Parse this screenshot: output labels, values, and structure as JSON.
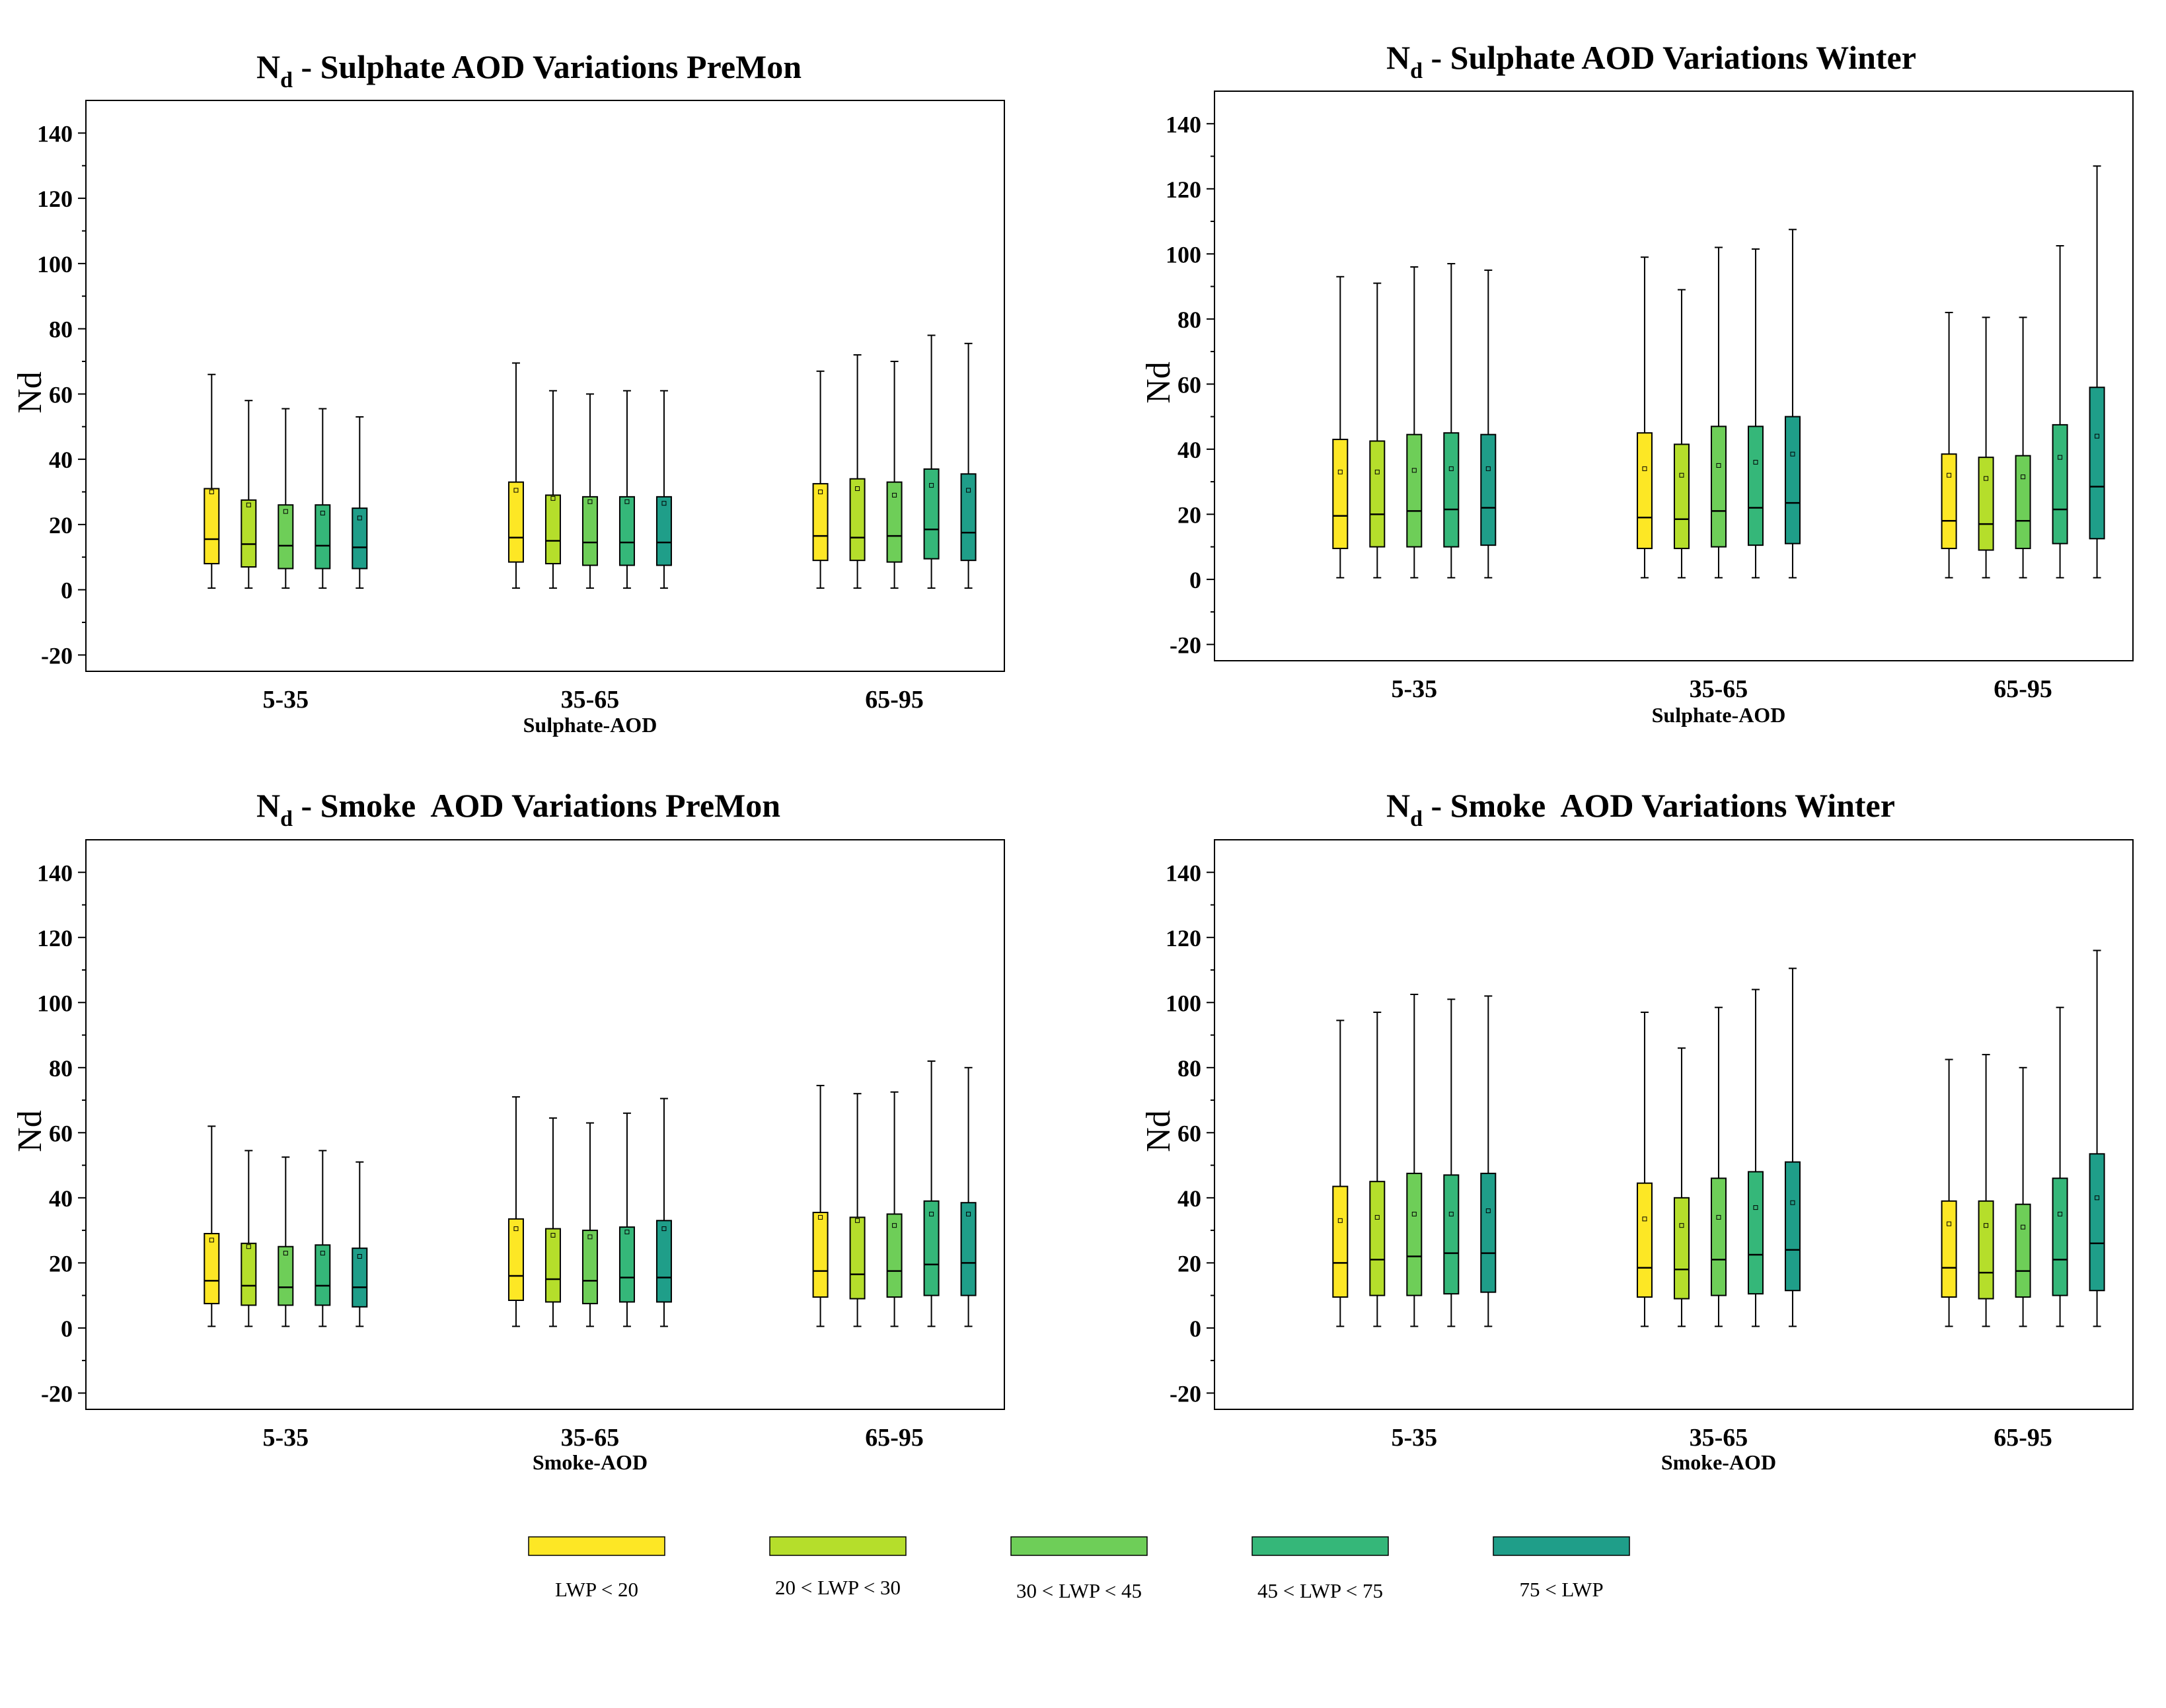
{
  "colors": {
    "lwp_lt_20": "#fde725",
    "lwp_20_30": "#b5de2b",
    "lwp_30_45": "#6ece58",
    "lwp_45_75": "#35b779",
    "lwp_75_plus": "#1f9e89"
  },
  "legend": [
    {
      "label": "LWP < 20",
      "color_key": "lwp_lt_20"
    },
    {
      "label": "20 < LWP < 30",
      "color_key": "lwp_20_30"
    },
    {
      "label": "30 < LWP < 45",
      "color_key": "lwp_30_45"
    },
    {
      "label": "45 < LWP < 75",
      "color_key": "lwp_45_75"
    },
    {
      "label": "75 < LWP",
      "color_key": "lwp_75_plus"
    }
  ],
  "chart_data": [
    {
      "type": "box",
      "title_main": "N",
      "title_sub": "d",
      "title_rest": " - Sulphate AOD Variations PreMon",
      "xlabel": "Sulphate-AOD",
      "ylabel": "Nd",
      "ylim": [
        -25,
        150
      ],
      "yticks": [
        -20,
        0,
        20,
        40,
        60,
        80,
        100,
        120,
        140
      ],
      "categories": [
        "5-35",
        "35-65",
        "65-95"
      ],
      "series": [
        {
          "name": "LWP < 20",
          "boxes": [
            [
              0.5,
              8,
              15.5,
              31,
              66,
              30
            ],
            [
              0.5,
              8.5,
              16,
              33,
              69.5,
              30.5
            ],
            [
              0.5,
              9,
              16.5,
              32.5,
              67,
              30
            ]
          ]
        },
        {
          "name": "20 < LWP < 30",
          "boxes": [
            [
              0.5,
              7,
              14,
              27.5,
              58,
              26
            ],
            [
              0.5,
              8,
              15,
              29,
              61,
              28
            ],
            [
              0.5,
              9,
              16,
              34,
              72,
              31
            ]
          ]
        },
        {
          "name": "30 < LWP < 45",
          "boxes": [
            [
              0.5,
              6.5,
              13.5,
              26,
              55.5,
              24
            ],
            [
              0.5,
              7.5,
              14.5,
              28.5,
              60,
              27
            ],
            [
              0.5,
              8.5,
              16.5,
              33,
              70,
              29
            ]
          ]
        },
        {
          "name": "45 < LWP < 75",
          "boxes": [
            [
              0.5,
              6.5,
              13.5,
              26,
              55.5,
              23.5
            ],
            [
              0.5,
              7.5,
              14.5,
              28.5,
              61,
              27
            ],
            [
              0.5,
              9.5,
              18.5,
              37,
              78,
              32
            ]
          ]
        },
        {
          "name": "75 < LWP",
          "boxes": [
            [
              0.5,
              6.5,
              13,
              25,
              53,
              22
            ],
            [
              0.5,
              7.5,
              14.5,
              28.5,
              61,
              26.5
            ],
            [
              0.5,
              9,
              17.5,
              35.5,
              75.5,
              30.5
            ]
          ]
        }
      ]
    },
    {
      "type": "box",
      "title_main": "N",
      "title_sub": "d",
      "title_rest": " - Sulphate AOD Variations Winter",
      "xlabel": "Sulphate-AOD",
      "ylabel": "Nd",
      "ylim": [
        -25,
        150
      ],
      "yticks": [
        -20,
        0,
        20,
        40,
        60,
        80,
        100,
        120,
        140
      ],
      "categories": [
        "5-35",
        "35-65",
        "65-95"
      ],
      "series": [
        {
          "name": "LWP < 20",
          "boxes": [
            [
              0.5,
              9.5,
              19.5,
              43,
              93,
              33
            ],
            [
              0.5,
              9.5,
              19,
              45,
              99,
              34
            ],
            [
              0.5,
              9.5,
              18,
              38.5,
              82,
              32
            ]
          ]
        },
        {
          "name": "20 < LWP < 30",
          "boxes": [
            [
              0.5,
              10,
              20,
              42.5,
              91,
              33
            ],
            [
              0.5,
              9.5,
              18.5,
              41.5,
              89,
              32
            ],
            [
              0.5,
              9,
              17,
              37.5,
              80.5,
              31
            ]
          ]
        },
        {
          "name": "30 < LWP < 45",
          "boxes": [
            [
              0.5,
              10,
              21,
              44.5,
              96,
              33.5
            ],
            [
              0.5,
              10,
              21,
              47,
              102,
              35
            ],
            [
              0.5,
              9.5,
              18,
              38,
              80.5,
              31.5
            ]
          ]
        },
        {
          "name": "45 < LWP < 75",
          "boxes": [
            [
              0.5,
              10,
              21.5,
              45,
              97,
              34
            ],
            [
              0.5,
              10.5,
              22,
              47,
              101.5,
              36
            ],
            [
              0.5,
              11,
              21.5,
              47.5,
              102.5,
              37.5
            ]
          ]
        },
        {
          "name": "75 < LWP",
          "boxes": [
            [
              0.5,
              10.5,
              22,
              44.5,
              95,
              34
            ],
            [
              0.5,
              11,
              23.5,
              50,
              107.5,
              38.5
            ],
            [
              0.5,
              12.5,
              28.5,
              59,
              127,
              44
            ]
          ]
        }
      ]
    },
    {
      "type": "box",
      "title_main": "N",
      "title_sub": "d",
      "title_rest": " - Smoke  AOD Variations PreMon",
      "xlabel": "Smoke-AOD",
      "ylabel": "Nd",
      "ylim": [
        -25,
        150
      ],
      "yticks": [
        -20,
        0,
        20,
        40,
        60,
        80,
        100,
        120,
        140
      ],
      "categories": [
        "5-35",
        "35-65",
        "65-95"
      ],
      "series": [
        {
          "name": "LWP < 20",
          "boxes": [
            [
              0.5,
              7.5,
              14.5,
              29,
              62,
              27
            ],
            [
              0.5,
              8.5,
              16,
              33.5,
              71,
              30.5
            ],
            [
              0.5,
              9.5,
              17.5,
              35.5,
              74.5,
              34
            ]
          ]
        },
        {
          "name": "20 < LWP < 30",
          "boxes": [
            [
              0.5,
              7,
              13,
              26,
              54.5,
              25
            ],
            [
              0.5,
              8,
              15,
              30.5,
              64.5,
              28.5
            ],
            [
              0.5,
              9,
              16.5,
              34,
              72,
              33
            ]
          ]
        },
        {
          "name": "30 < LWP < 45",
          "boxes": [
            [
              0.5,
              7,
              12.5,
              25,
              52.5,
              23
            ],
            [
              0.5,
              7.5,
              14.5,
              30,
              63,
              28
            ],
            [
              0.5,
              9.5,
              17.5,
              35,
              72.5,
              31.5
            ]
          ]
        },
        {
          "name": "45 < LWP < 75",
          "boxes": [
            [
              0.5,
              7,
              13,
              25.5,
              54.5,
              23
            ],
            [
              0.5,
              8,
              15.5,
              31,
              66,
              29.5
            ],
            [
              0.5,
              10,
              19.5,
              39,
              82,
              35
            ]
          ]
        },
        {
          "name": "75 < LWP",
          "boxes": [
            [
              0.5,
              6.5,
              12.5,
              24.5,
              51,
              22
            ],
            [
              0.5,
              8,
              15.5,
              33,
              70.5,
              30.5
            ],
            [
              0.5,
              10,
              20,
              38.5,
              80,
              35
            ]
          ]
        }
      ]
    },
    {
      "type": "box",
      "title_main": "N",
      "title_sub": "d",
      "title_rest": " - Smoke  AOD Variations Winter",
      "xlabel": "Smoke-AOD",
      "ylabel": "Nd",
      "ylim": [
        -25,
        150
      ],
      "yticks": [
        -20,
        0,
        20,
        40,
        60,
        80,
        100,
        120,
        140
      ],
      "categories": [
        "5-35",
        "35-65",
        "65-95"
      ],
      "series": [
        {
          "name": "LWP < 20",
          "boxes": [
            [
              0.5,
              9.5,
              20,
              43.5,
              94.5,
              33
            ],
            [
              0.5,
              9.5,
              18.5,
              44.5,
              97,
              33.5
            ],
            [
              0.5,
              9.5,
              18.5,
              39,
              82.5,
              32
            ]
          ]
        },
        {
          "name": "20 < LWP < 30",
          "boxes": [
            [
              0.5,
              10,
              21,
              45,
              97,
              34
            ],
            [
              0.5,
              9,
              18,
              40,
              86,
              31.5
            ],
            [
              0.5,
              9,
              17,
              39,
              84,
              31.5
            ]
          ]
        },
        {
          "name": "30 < LWP < 45",
          "boxes": [
            [
              0.5,
              10,
              22,
              47.5,
              102.5,
              35
            ],
            [
              0.5,
              10,
              21,
              46,
              98.5,
              34
            ],
            [
              0.5,
              9.5,
              17.5,
              38,
              80,
              31
            ]
          ]
        },
        {
          "name": "45 < LWP < 75",
          "boxes": [
            [
              0.5,
              10.5,
              23,
              47,
              101,
              35
            ],
            [
              0.5,
              10.5,
              22.5,
              48,
              104,
              37
            ],
            [
              0.5,
              10,
              21,
              46,
              98.5,
              35
            ]
          ]
        },
        {
          "name": "75 < LWP",
          "boxes": [
            [
              0.5,
              11,
              23,
              47.5,
              102,
              36
            ],
            [
              0.5,
              11.5,
              24,
              51,
              110.5,
              38.5
            ],
            [
              0.5,
              11.5,
              26,
              53.5,
              116,
              40
            ]
          ]
        }
      ]
    }
  ]
}
